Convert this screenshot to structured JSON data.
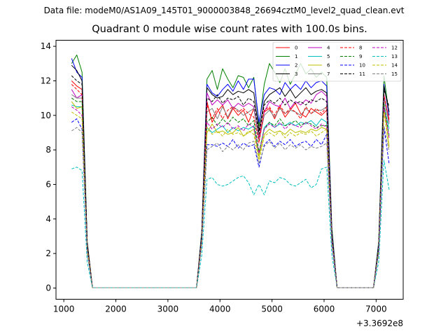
{
  "header": {
    "suptitle": "Data file: modeM0/AS1A09_145T01_9000003848_26694cztM0_level2_quad_clean.evt",
    "title": "Quadrant 0 module wise count rates with 100.0s bins."
  },
  "chart_data": {
    "type": "line",
    "title": "Quadrant 0 module wise count rates with 100.0s bins.",
    "xlabel": "",
    "ylabel": "",
    "x_offset_label": "+3.3692e8",
    "xlim": [
      850,
      7520
    ],
    "ylim": [
      -0.65,
      14.35
    ],
    "xticks": [
      1000,
      2000,
      3000,
      4000,
      5000,
      6000,
      7000
    ],
    "xtick_labels": [
      "1000",
      "2000",
      "3000",
      "4000",
      "5000",
      "6000",
      "7000"
    ],
    "yticks": [
      0,
      2,
      4,
      6,
      8,
      10,
      12,
      14
    ],
    "ytick_labels": [
      "0",
      "2",
      "4",
      "6",
      "8",
      "10",
      "12",
      "14"
    ],
    "grid": false,
    "legend": {
      "placement": "top-right",
      "columns": 4
    },
    "x": [
      1150,
      1250,
      1350,
      1450,
      1550,
      1650,
      3550,
      3650,
      3750,
      3850,
      3950,
      4050,
      4150,
      4250,
      4350,
      4450,
      4550,
      4650,
      4750,
      4850,
      4950,
      5050,
      5150,
      5250,
      5350,
      5450,
      5550,
      5650,
      5750,
      5850,
      5950,
      6050,
      6150,
      6250,
      6950,
      7050,
      7150,
      7250
    ],
    "series": [
      {
        "name": "0",
        "color": "#ff0000",
        "dash": "solid",
        "values": [
          12.0,
          11.7,
          11.5,
          2.4,
          0.02,
          0.02,
          0.02,
          3.0,
          10.8,
          9.6,
          10.2,
          10.6,
          9.8,
          10.4,
          10.0,
          10.3,
          9.6,
          10.4,
          8.7,
          10.2,
          10.4,
          9.8,
          10.5,
          9.9,
          10.3,
          10.7,
          10.1,
          9.9,
          10.4,
          10.2,
          10.0,
          10.3,
          3.0,
          0.02,
          0.02,
          2.4,
          11.0,
          9.8
        ]
      },
      {
        "name": "1",
        "color": "#008000",
        "dash": "solid",
        "values": [
          13.0,
          13.5,
          12.5,
          2.7,
          0.02,
          0.02,
          0.02,
          3.3,
          12.1,
          12.6,
          11.5,
          12.7,
          12.1,
          11.6,
          12.3,
          12.2,
          11.6,
          12.2,
          9.4,
          11.8,
          13.0,
          12.5,
          11.9,
          12.7,
          11.8,
          12.4,
          13.0,
          12.4,
          12.7,
          12.2,
          12.5,
          12.2,
          3.5,
          0.02,
          0.02,
          2.7,
          12.3,
          10.0
        ]
      },
      {
        "name": "2",
        "color": "#0000ff",
        "dash": "solid",
        "values": [
          13.3,
          12.5,
          12.2,
          2.6,
          0.02,
          0.02,
          0.02,
          3.2,
          11.8,
          11.3,
          11.1,
          11.5,
          11.8,
          11.4,
          12.0,
          11.5,
          12.1,
          12.1,
          9.6,
          11.2,
          11.6,
          11.5,
          11.2,
          11.9,
          11.5,
          11.8,
          11.5,
          12.0,
          11.6,
          11.9,
          12.0,
          11.7,
          3.3,
          0.02,
          0.02,
          2.6,
          11.8,
          10.0
        ]
      },
      {
        "name": "3",
        "color": "#000000",
        "dash": "solid",
        "values": [
          12.9,
          12.6,
          12.0,
          2.6,
          0.02,
          0.02,
          0.02,
          3.1,
          11.6,
          11.2,
          11.0,
          11.1,
          11.5,
          11.2,
          11.4,
          11.3,
          11.5,
          11.3,
          9.1,
          10.8,
          11.2,
          11.4,
          11.6,
          11.1,
          11.5,
          11.0,
          11.3,
          11.6,
          11.2,
          11.4,
          11.5,
          11.3,
          3.2,
          0.02,
          0.02,
          2.5,
          11.7,
          10.2
        ]
      },
      {
        "name": "4",
        "color": "#bf00bf",
        "dash": "solid",
        "values": [
          11.5,
          11.0,
          11.2,
          2.4,
          0.02,
          0.02,
          0.02,
          3.0,
          11.3,
          10.6,
          10.9,
          10.6,
          10.9,
          10.4,
          10.7,
          10.5,
          10.7,
          10.5,
          8.6,
          10.2,
          10.8,
          10.6,
          10.5,
          11.0,
          10.4,
          10.8,
          10.6,
          10.9,
          10.7,
          11.2,
          11.4,
          11.1,
          3.1,
          0.02,
          0.02,
          2.4,
          11.2,
          9.6
        ]
      },
      {
        "name": "5",
        "color": "#00bfbf",
        "dash": "solid",
        "values": [
          10.6,
          10.5,
          10.5,
          2.3,
          0.02,
          0.02,
          0.02,
          2.9,
          9.3,
          9.0,
          9.2,
          9.4,
          9.0,
          9.3,
          9.1,
          9.3,
          9.2,
          9.4,
          7.8,
          9.3,
          9.6,
          9.3,
          9.5,
          9.4,
          9.6,
          9.4,
          9.6,
          9.5,
          9.7,
          9.4,
          9.8,
          9.6,
          2.9,
          0.02,
          0.02,
          2.3,
          10.6,
          9.2
        ]
      },
      {
        "name": "6",
        "color": "#bfbf00",
        "dash": "solid",
        "values": [
          10.8,
          10.4,
          10.5,
          2.3,
          0.02,
          0.02,
          0.02,
          2.8,
          9.0,
          9.5,
          9.0,
          9.1,
          8.9,
          9.0,
          9.3,
          8.8,
          9.0,
          9.2,
          7.6,
          8.9,
          9.2,
          9.0,
          9.1,
          8.9,
          9.2,
          9.0,
          9.1,
          9.0,
          9.2,
          9.1,
          9.3,
          9.2,
          2.9,
          0.02,
          0.02,
          2.3,
          10.5,
          8.2
        ]
      },
      {
        "name": "7",
        "color": "#808080",
        "dash": "solid",
        "values": [
          11.2,
          11.0,
          11.0,
          2.4,
          0.02,
          0.02,
          0.02,
          3.0,
          10.2,
          10.4,
          9.8,
          10.5,
          9.9,
          10.5,
          10.3,
          10.0,
          10.2,
          10.4,
          8.5,
          10.0,
          10.3,
          9.9,
          10.4,
          10.1,
          10.3,
          10.2,
          10.0,
          10.4,
          10.1,
          10.3,
          10.3,
          10.5,
          3.0,
          0.02,
          0.02,
          2.4,
          11.0,
          9.5
        ]
      },
      {
        "name": "8",
        "color": "#ff0000",
        "dash": "dashed",
        "values": [
          11.8,
          11.5,
          11.2,
          2.5,
          0.02,
          0.02,
          0.02,
          3.0,
          10.6,
          9.8,
          10.4,
          9.8,
          10.3,
          10.5,
          10.2,
          10.4,
          10.1,
          9.9,
          8.4,
          10.3,
          10.5,
          10.0,
          10.6,
          10.1,
          10.4,
          10.2,
          9.8,
          10.5,
          10.1,
          10.4,
          10.1,
          10.5,
          3.0,
          0.02,
          0.02,
          2.4,
          11.2,
          9.7
        ]
      },
      {
        "name": "9",
        "color": "#008000",
        "dash": "dashed",
        "values": [
          11.0,
          10.8,
          10.8,
          2.4,
          0.02,
          0.02,
          0.02,
          2.9,
          9.6,
          9.9,
          9.4,
          9.8,
          9.5,
          9.9,
          9.6,
          9.8,
          9.4,
          9.7,
          7.9,
          9.2,
          9.6,
          9.4,
          9.8,
          9.4,
          9.5,
          9.7,
          9.4,
          9.6,
          9.5,
          9.3,
          9.4,
          9.4,
          2.9,
          0.02,
          0.02,
          2.3,
          10.7,
          8.8
        ]
      },
      {
        "name": "10",
        "color": "#0000ff",
        "dash": "dashed",
        "values": [
          9.6,
          9.8,
          9.2,
          2.1,
          0.02,
          0.02,
          0.02,
          2.6,
          8.3,
          8.3,
          8.2,
          8.4,
          8.2,
          8.6,
          8.1,
          8.4,
          8.2,
          8.3,
          7.0,
          8.3,
          8.6,
          8.2,
          8.5,
          8.3,
          8.6,
          8.2,
          8.4,
          8.5,
          8.2,
          8.6,
          8.3,
          8.9,
          2.6,
          0.02,
          0.02,
          2.1,
          9.3,
          7.2
        ]
      },
      {
        "name": "11",
        "color": "#000000",
        "dash": "dashed",
        "values": [
          12.3,
          12.0,
          11.8,
          2.6,
          0.02,
          0.02,
          0.02,
          3.1,
          11.0,
          10.8,
          11.2,
          10.7,
          11.0,
          10.9,
          11.1,
          10.6,
          11.0,
          10.8,
          8.9,
          10.6,
          10.9,
          10.7,
          11.0,
          10.6,
          10.9,
          10.7,
          10.8,
          10.6,
          10.9,
          10.8,
          11.0,
          10.8,
          3.1,
          0.02,
          0.02,
          2.5,
          11.5,
          10.5
        ]
      },
      {
        "name": "12",
        "color": "#bf00bf",
        "dash": "dashed",
        "values": [
          10.5,
          10.3,
          10.0,
          2.3,
          0.02,
          0.02,
          0.02,
          2.8,
          9.6,
          9.2,
          9.5,
          9.3,
          9.6,
          9.2,
          9.4,
          9.1,
          9.5,
          9.3,
          7.8,
          9.2,
          9.5,
          9.3,
          9.6,
          9.2,
          9.5,
          9.4,
          9.3,
          9.6,
          9.4,
          9.2,
          9.5,
          9.3,
          2.8,
          0.02,
          0.02,
          2.2,
          10.5,
          8.7
        ]
      },
      {
        "name": "13",
        "color": "#00bfbf",
        "dash": "dashed",
        "values": [
          6.9,
          7.0,
          6.8,
          1.5,
          0.02,
          0.02,
          0.02,
          1.9,
          6.3,
          6.4,
          6.0,
          5.9,
          6.0,
          6.2,
          6.4,
          6.5,
          6.1,
          5.4,
          6.0,
          5.4,
          6.2,
          6.1,
          6.4,
          6.3,
          6.0,
          5.9,
          6.1,
          6.3,
          5.8,
          6.0,
          6.9,
          7.0,
          1.9,
          0.02,
          0.02,
          1.5,
          7.4,
          5.7
        ]
      },
      {
        "name": "14",
        "color": "#bfbf00",
        "dash": "dashed",
        "values": [
          10.2,
          10.0,
          9.8,
          2.2,
          0.02,
          0.02,
          0.02,
          2.7,
          9.3,
          8.9,
          9.1,
          8.8,
          9.2,
          8.9,
          9.0,
          8.8,
          9.1,
          8.9,
          7.4,
          8.8,
          9.0,
          8.8,
          9.1,
          8.7,
          9.0,
          8.8,
          9.0,
          8.9,
          9.1,
          8.8,
          9.0,
          9.2,
          2.7,
          0.02,
          0.02,
          2.2,
          10.2,
          8.1
        ]
      },
      {
        "name": "15",
        "color": "#808080",
        "dash": "dashed",
        "values": [
          9.1,
          9.3,
          9.0,
          2.0,
          0.02,
          0.02,
          0.02,
          2.5,
          8.0,
          8.2,
          8.4,
          7.9,
          8.2,
          8.0,
          8.3,
          8.0,
          8.4,
          8.5,
          7.2,
          8.2,
          8.5,
          8.1,
          8.4,
          8.0,
          8.3,
          8.1,
          8.3,
          8.0,
          8.2,
          8.1,
          8.2,
          8.4,
          2.5,
          0.02,
          0.02,
          2.0,
          9.4,
          7.9
        ]
      }
    ]
  }
}
